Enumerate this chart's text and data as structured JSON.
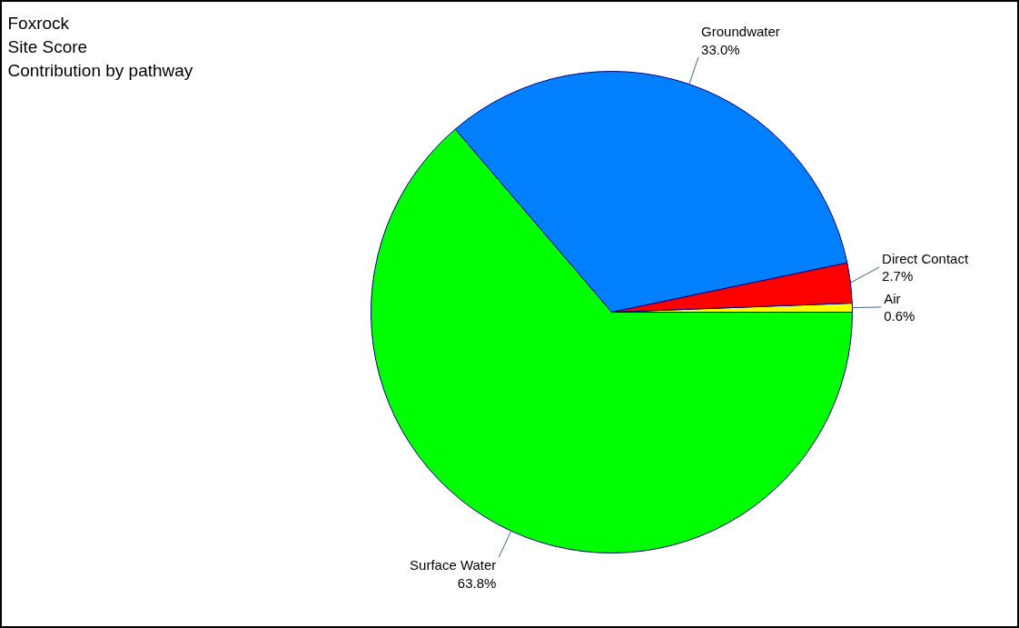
{
  "chart_data": {
    "type": "pie",
    "title": "Foxrock\nSite Score\nContribution by pathway",
    "categories": [
      "Air",
      "Direct Contact",
      "Groundwater",
      "Surface Water"
    ],
    "values": [
      0.6,
      2.7,
      33.0,
      63.8
    ],
    "value_labels": [
      "0.6%",
      "2.7%",
      "33.0%",
      "63.8%"
    ],
    "colors": [
      "#ffff00",
      "#ff0000",
      "#0080ff",
      "#00ff00"
    ],
    "legend": false
  }
}
